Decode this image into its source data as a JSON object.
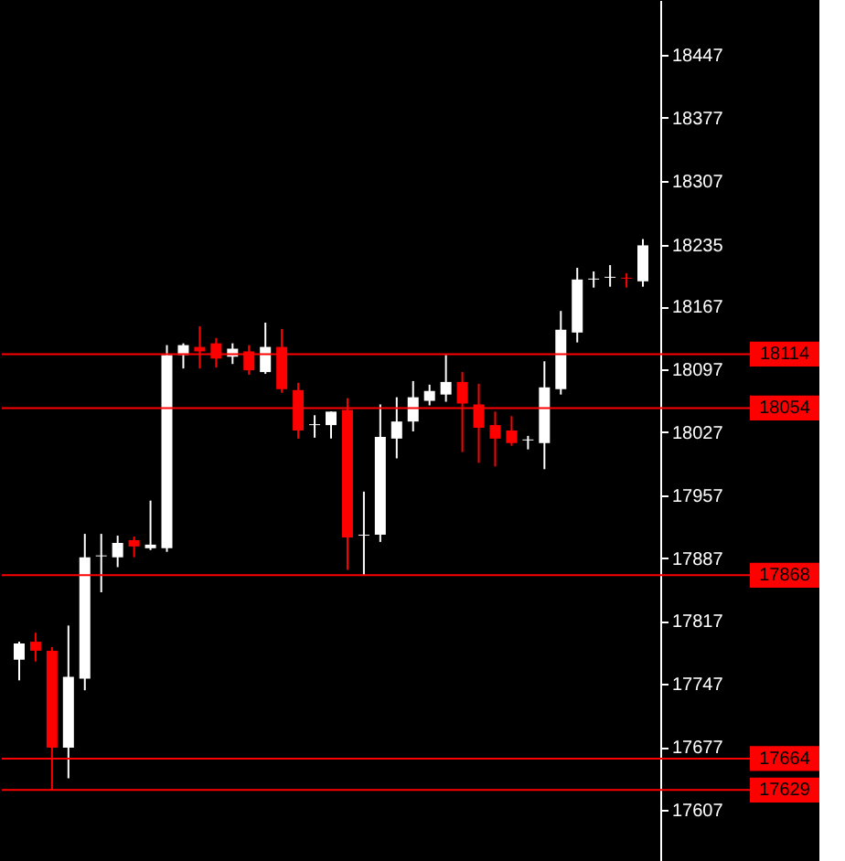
{
  "chart_data": {
    "type": "candlestick",
    "categories": [
      null,
      null,
      null,
      null,
      null,
      null,
      null,
      null,
      null,
      null,
      null,
      null,
      null,
      null,
      null,
      null,
      null,
      null,
      null,
      null,
      null,
      null,
      null,
      null,
      null,
      null,
      null,
      null,
      null,
      null,
      null,
      null,
      null,
      null,
      null,
      null,
      null,
      null,
      null
    ],
    "ohlc": [
      [
        17774,
        17794,
        17751,
        17792
      ],
      [
        17794,
        17804,
        17772,
        17784
      ],
      [
        17784,
        17788,
        17629,
        17676
      ],
      [
        17676,
        17812,
        17642,
        17755
      ],
      [
        17753,
        17914,
        17740,
        17888
      ],
      [
        17889,
        17914,
        17849,
        17890
      ],
      [
        17888,
        17912,
        17877,
        17904
      ],
      [
        17907,
        17911,
        17888,
        17900
      ],
      [
        17898,
        17951,
        17896,
        17902
      ],
      [
        17898,
        18124,
        17894,
        18113
      ],
      [
        18113,
        18126,
        18098,
        18124
      ],
      [
        18122,
        18145,
        18098,
        18117
      ],
      [
        18126,
        18132,
        18099,
        18109
      ],
      [
        18111,
        18126,
        18103,
        18120
      ],
      [
        18117,
        18124,
        18091,
        18096
      ],
      [
        18094,
        18149,
        18092,
        18122
      ],
      [
        18122,
        18142,
        18071,
        18075
      ],
      [
        18074,
        18082,
        18020,
        18029
      ],
      [
        18035,
        18046,
        18021,
        18036
      ],
      [
        18035,
        18050,
        18020,
        18050
      ],
      [
        18052,
        18065,
        17874,
        17910
      ],
      [
        17912,
        17961,
        17868,
        17913
      ],
      [
        17913,
        18058,
        17905,
        18022
      ],
      [
        18020,
        18066,
        17998,
        18039
      ],
      [
        18039,
        18084,
        18028,
        18066
      ],
      [
        18062,
        18080,
        18057,
        18073
      ],
      [
        18069,
        18113,
        18061,
        18083
      ],
      [
        18083,
        18094,
        18005,
        18059
      ],
      [
        18058,
        18081,
        17993,
        18032
      ],
      [
        18035,
        18050,
        17989,
        18020
      ],
      [
        18029,
        18045,
        18012,
        18015
      ],
      [
        18018,
        18023,
        18008,
        18019
      ],
      [
        18015,
        18106,
        17986,
        18077
      ],
      [
        18075,
        18162,
        18069,
        18141
      ],
      [
        18138,
        18210,
        18127,
        18197
      ],
      [
        18197,
        18206,
        18188,
        18198
      ],
      [
        18199,
        18213,
        18189,
        18200
      ],
      [
        18199,
        18204,
        18188,
        18198
      ],
      [
        18195,
        18242,
        18189,
        18235
      ]
    ],
    "colors": [
      "#ffffff",
      "#ff0000",
      "#ff0000",
      "#ffffff",
      "#ffffff",
      "#ffffff",
      "#ffffff",
      "#ff0000",
      "#ffffff",
      "#ffffff",
      "#ffffff",
      "#ff0000",
      "#ff0000",
      "#ffffff",
      "#ff0000",
      "#ffffff",
      "#ff0000",
      "#ff0000",
      "#ffffff",
      "#ffffff",
      "#ff0000",
      "#ffffff",
      "#ffffff",
      "#ffffff",
      "#ffffff",
      "#ffffff",
      "#ffffff",
      "#ff0000",
      "#ff0000",
      "#ff0000",
      "#ff0000",
      "#ffffff",
      "#ffffff",
      "#ffffff",
      "#ffffff",
      "#ffffff",
      "#ffffff",
      "#ff0000",
      "#ffffff"
    ],
    "ylim": [
      17550,
      18508
    ],
    "yticks": [
      17607,
      17677,
      17747,
      17817,
      17887,
      17957,
      18027,
      18097,
      18167,
      18235,
      18307,
      18377,
      18447
    ],
    "ref_lines": [
      {
        "axis": "y",
        "value": 18114,
        "label": "18114",
        "color": "#ff0000"
      },
      {
        "axis": "y",
        "value": 18054,
        "label": "18054",
        "color": "#ff0000"
      },
      {
        "axis": "y",
        "value": 17868,
        "label": "17868",
        "color": "#ff0000"
      },
      {
        "axis": "y",
        "value": 17664,
        "label": "17664",
        "color": "#ff0000"
      },
      {
        "axis": "y",
        "value": 17629,
        "label": "17629",
        "color": "#ff0000"
      }
    ],
    "grid": false
  }
}
